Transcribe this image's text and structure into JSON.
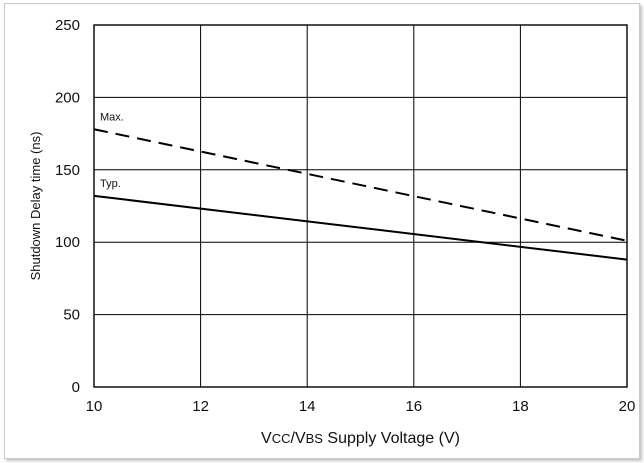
{
  "chart_data": {
    "type": "line",
    "title": "",
    "xlabel": "VCC/VBS Supply Voltage (V)",
    "xlabel_parts": [
      "V",
      "CC",
      "/V",
      "BS",
      " Supply Voltage (V)"
    ],
    "ylabel": "Shutdown Delay time (ns)",
    "xlim": [
      10,
      20
    ],
    "ylim": [
      0,
      250
    ],
    "xticks": [
      10,
      12,
      14,
      16,
      18,
      20
    ],
    "yticks": [
      0,
      50,
      100,
      150,
      200,
      250
    ],
    "grid": true,
    "series": [
      {
        "name": "Max.",
        "style": "dashed",
        "x": [
          10,
          20
        ],
        "y": [
          178,
          101
        ]
      },
      {
        "name": "Typ.",
        "style": "solid",
        "x": [
          10,
          20
        ],
        "y": [
          132,
          88
        ]
      }
    ]
  }
}
